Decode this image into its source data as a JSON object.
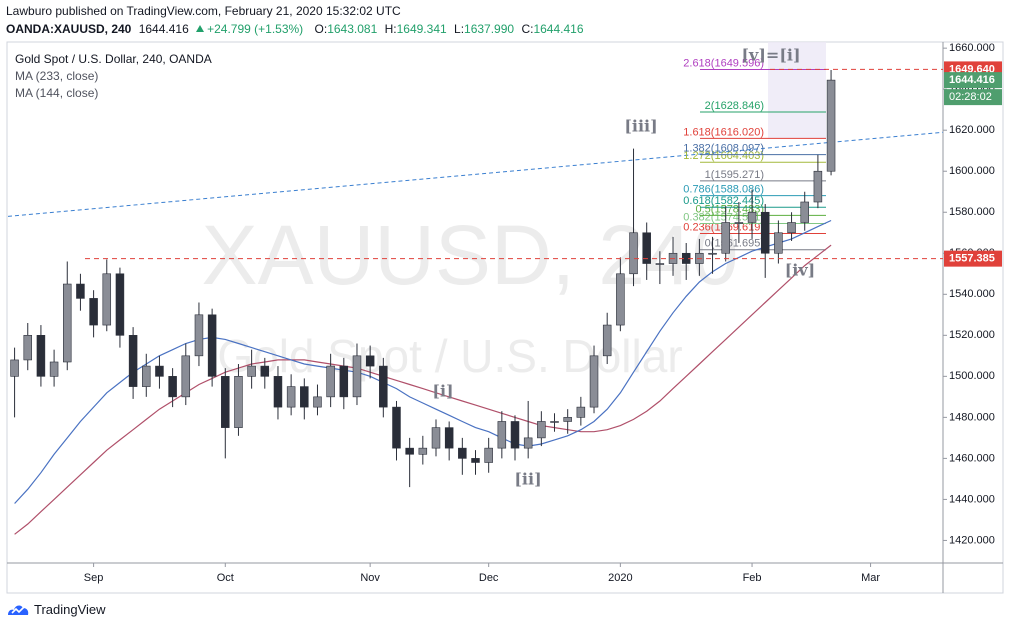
{
  "header": {
    "author_line": "Lawburo published on TradingView.com, February 21, 2020 15:32:02 UTC",
    "symbol": "OANDA:XAUUSD, 240",
    "last": "1644.416",
    "change": "+24.799 (+1.53%)",
    "open_label": "O:",
    "open": "1643.081",
    "high_label": "H:",
    "high": "1649.341",
    "low_label": "L:",
    "low": "1637.990",
    "close_label": "C:",
    "close": "1644.416"
  },
  "footer": {
    "brand": "TradingView"
  },
  "chart_data": {
    "type": "candlestick",
    "title": "Gold Spot / U.S. Dollar, 240, OANDA",
    "watermark": "XAUUSD, 240",
    "watermark_subtitle": "Gold Spot / U.S. Dollar",
    "categories": [
      null,
      null,
      null,
      null,
      null,
      null,
      "Sep",
      null,
      null,
      null,
      null,
      null,
      null,
      null,
      null,
      null,
      "Oct",
      null,
      null,
      null,
      null,
      null,
      null,
      null,
      null,
      null,
      null,
      "Nov",
      null,
      null,
      null,
      null,
      null,
      null,
      null,
      null,
      "Dec",
      null,
      null,
      null,
      null,
      null,
      null,
      null,
      null,
      null,
      "2020",
      null,
      null,
      null,
      null,
      null,
      null,
      null,
      null,
      null,
      "Feb",
      null,
      null,
      null,
      null,
      null,
      null,
      null,
      null,
      "Mar",
      null,
      null,
      null,
      null,
      null
    ],
    "open": [
      1500,
      1508,
      1520,
      1500,
      1507,
      1545,
      1538,
      1525,
      1550,
      1520,
      1495,
      1505,
      1500,
      1490,
      1510,
      1530,
      1500,
      1475,
      1500,
      1505,
      1500,
      1485,
      1495,
      1485,
      1490,
      1505,
      1490,
      1510,
      1505,
      1485,
      1465,
      1462,
      1465,
      1475,
      1465,
      1460,
      1458,
      1465,
      1478,
      1465,
      1470,
      1478,
      1478,
      1480,
      1485,
      1510,
      1525,
      1550,
      1570,
      1555,
      1555,
      1560,
      1555,
      1560,
      1560,
      1575,
      1575,
      1580,
      1560,
      1570,
      1575,
      1585,
      1600,
      null,
      null,
      null,
      null,
      null,
      null,
      null,
      null
    ],
    "high": [
      1514,
      1526,
      1525,
      1513,
      1556,
      1550,
      1542,
      1557,
      1553,
      1524,
      1511,
      1510,
      1504,
      1516,
      1536,
      1533,
      1504,
      1506,
      1513,
      1509,
      1505,
      1501,
      1499,
      1496,
      1511,
      1509,
      1516,
      1515,
      1509,
      1488,
      1470,
      1471,
      1479,
      1478,
      1470,
      1464,
      1470,
      1483,
      1481,
      1488,
      1483,
      1482,
      1484,
      1490,
      1515,
      1531,
      1558,
      1611,
      1575,
      1561,
      1568,
      1565,
      1567,
      1568,
      1583,
      1585,
      1591,
      1584,
      1576,
      1580,
      1590,
      1608,
      1649.341,
      null,
      null,
      null,
      null,
      null,
      null,
      null,
      null
    ],
    "low": [
      1480,
      1503,
      1495,
      1495,
      1503,
      1532,
      1519,
      1522,
      1514,
      1489,
      1490,
      1494,
      1485,
      1486,
      1505,
      1495,
      1460,
      1471,
      1494,
      1494,
      1479,
      1481,
      1479,
      1481,
      1485,
      1484,
      1486,
      1499,
      1480,
      1459,
      1446,
      1457,
      1461,
      1459,
      1452,
      1452,
      1453,
      1460,
      1459,
      1460,
      1466,
      1473,
      1472,
      1476,
      1482,
      1506,
      1522,
      1544,
      1547,
      1545,
      1549,
      1547,
      1549,
      1550,
      1556,
      1565,
      1567,
      1548,
      1555,
      1566,
      1571,
      1582,
      1598,
      null,
      null,
      null,
      null,
      null,
      null,
      null,
      null
    ],
    "close": [
      1508,
      1520,
      1500,
      1507,
      1545,
      1538,
      1525,
      1550,
      1520,
      1495,
      1505,
      1500,
      1490,
      1510,
      1530,
      1500,
      1475,
      1500,
      1505,
      1500,
      1485,
      1495,
      1485,
      1490,
      1505,
      1490,
      1510,
      1505,
      1485,
      1465,
      1462,
      1465,
      1475,
      1465,
      1460,
      1458,
      1465,
      1478,
      1465,
      1470,
      1478,
      1478,
      1480,
      1485,
      1510,
      1525,
      1550,
      1570,
      1555,
      1555,
      1560,
      1555,
      1560,
      1560,
      1575,
      1575,
      1580,
      1560,
      1570,
      1575,
      1585,
      1600,
      1644.416,
      null,
      null,
      null,
      null,
      null,
      null,
      null,
      null
    ],
    "candle_colors": {
      "up": "#8a8d96",
      "down": "#2a2e39"
    },
    "series": [
      {
        "name": "MA (233, close)",
        "color": "#b0506a",
        "values": [
          1423,
          1428,
          1434,
          1440,
          1446,
          1452,
          1458,
          1464,
          1469,
          1474,
          1479,
          1484,
          1488,
          1492,
          1496,
          1499,
          1502,
          1504,
          1506,
          1507,
          1508,
          1508,
          1508,
          1507,
          1506,
          1505,
          1504,
          1502,
          1500,
          1498,
          1496,
          1494,
          1492,
          1490,
          1488,
          1486,
          1484,
          1482,
          1480,
          1478,
          1476,
          1475,
          1474,
          1473,
          1473,
          1474,
          1476,
          1479,
          1483,
          1488,
          1494,
          1500,
          1506,
          1512,
          1518,
          1524,
          1530,
          1536,
          1542,
          1548,
          1554,
          1559,
          1564,
          null,
          null,
          null,
          null,
          null,
          null,
          null,
          null
        ]
      },
      {
        "name": "MA (144, close)",
        "color": "#4a72c2",
        "values": [
          1438,
          1445,
          1453,
          1462,
          1470,
          1478,
          1485,
          1492,
          1497,
          1502,
          1506,
          1510,
          1513,
          1516,
          1518,
          1519,
          1518,
          1516,
          1514,
          1512,
          1510,
          1508,
          1506,
          1505,
          1504,
          1503,
          1502,
          1500,
          1497,
          1494,
          1490,
          1487,
          1484,
          1481,
          1478,
          1475,
          1473,
          1470,
          1467,
          1466,
          1467,
          1469,
          1471,
          1474,
          1478,
          1484,
          1492,
          1502,
          1512,
          1522,
          1531,
          1539,
          1546,
          1551,
          1555,
          1558,
          1561,
          1563,
          1565,
          1567,
          1570,
          1573,
          1576,
          null,
          null,
          null,
          null,
          null,
          null,
          null,
          null
        ]
      }
    ],
    "ylim": [
      1409,
      1663
    ],
    "yticks": [
      {
        "value": 1420,
        "label": "1420.000"
      },
      {
        "value": 1440,
        "label": "1440.000"
      },
      {
        "value": 1460,
        "label": "1460.000"
      },
      {
        "value": 1480,
        "label": "1480.000"
      },
      {
        "value": 1500,
        "label": "1500.000"
      },
      {
        "value": 1520,
        "label": "1520.000"
      },
      {
        "value": 1540,
        "label": "1540.000"
      },
      {
        "value": 1560,
        "label": "1560.000"
      },
      {
        "value": 1580,
        "label": "1580.000"
      },
      {
        "value": 1600,
        "label": "1600.000"
      },
      {
        "value": 1620,
        "label": "1620.000"
      },
      {
        "value": 1640,
        "label": "1640.000"
      },
      {
        "value": 1660,
        "label": "1660.000"
      }
    ],
    "trendline": {
      "values": [
        1578,
        1619
      ],
      "color": "#3a7fd0"
    },
    "horizontal_lines": {
      "values": [
        1649.64,
        1557.385
      ],
      "value_labels": [
        "1649.640",
        "1557.385"
      ],
      "color": "#e0413a"
    },
    "last_price": 1644.416,
    "countdown": "02:28:02",
    "last_price_color": "#4f9e6e",
    "fibonacci": {
      "values": [
        1561.695,
        1569.619,
        1574.521,
        1578.483,
        1582.445,
        1588.086,
        1595.271,
        1604.403,
        1608.097,
        1616.02,
        1628.846,
        1649.596
      ],
      "value_labels": [
        "0(1561.695)",
        "0.236(1569.619)",
        "0.382(1574.521)",
        "0.5(1578.483)",
        "0.618(1582.445)",
        "0.786(1588.086)",
        "1(1595.271)",
        "1.272(1604.403)",
        "1.382(1608.097)",
        "1.618(1616.020)",
        "2(1628.846)",
        "2.618(1649.596)"
      ],
      "colors": [
        "#787b86",
        "#e0413a",
        "#81c784",
        "#5cae3f",
        "#1a9a8a",
        "#2b9bb5",
        "#787b86",
        "#a3b93b",
        "#4a6fa5",
        "#e0413a",
        "#26a269",
        "#b040c0"
      ]
    },
    "annotations": [
      "[i]",
      "[ii]",
      "[iii]",
      "[iv]",
      "[v]=[i]"
    ]
  }
}
